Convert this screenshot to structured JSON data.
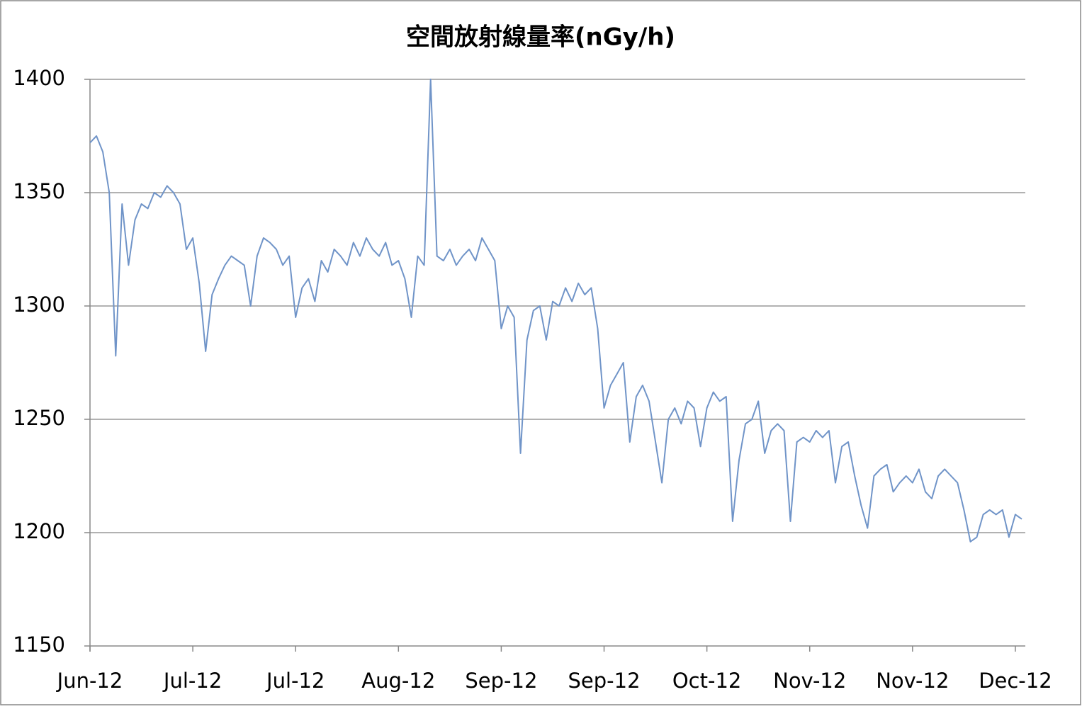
{
  "chart_data": {
    "type": "line",
    "title": "空間放射線量率(nGy/h)",
    "categories": [
      "Jun-12",
      null,
      null,
      null,
      null,
      null,
      null,
      null,
      null,
      null,
      null,
      null,
      null,
      null,
      null,
      null,
      "Jul-12",
      null,
      null,
      null,
      null,
      null,
      null,
      null,
      null,
      null,
      null,
      null,
      null,
      null,
      null,
      null,
      "Jul-12",
      null,
      null,
      null,
      null,
      null,
      null,
      null,
      null,
      null,
      null,
      null,
      null,
      null,
      null,
      null,
      "Aug-12",
      null,
      null,
      null,
      null,
      null,
      null,
      null,
      null,
      null,
      null,
      null,
      null,
      null,
      null,
      null,
      "Sep-12",
      null,
      null,
      null,
      null,
      null,
      null,
      null,
      null,
      null,
      null,
      null,
      null,
      null,
      null,
      null,
      "Sep-12",
      null,
      null,
      null,
      null,
      null,
      null,
      null,
      null,
      null,
      null,
      null,
      null,
      null,
      null,
      null,
      "Oct-12",
      null,
      null,
      null,
      null,
      null,
      null,
      null,
      null,
      null,
      null,
      null,
      null,
      null,
      null,
      null,
      "Nov-12",
      null,
      null,
      null,
      null,
      null,
      null,
      null,
      null,
      null,
      null,
      null,
      null,
      null,
      null,
      null,
      "Nov-12",
      null,
      null,
      null,
      null,
      null,
      null,
      null,
      null,
      null,
      null,
      null,
      null,
      null,
      null,
      null,
      "Dec-12",
      null
    ],
    "values": [
      1372,
      1375,
      1368,
      1350,
      1278,
      1345,
      1318,
      1338,
      1345,
      1343,
      1350,
      1348,
      1353,
      1350,
      1345,
      1325,
      1330,
      1310,
      1280,
      1305,
      1312,
      1318,
      1322,
      1320,
      1318,
      1300,
      1322,
      1330,
      1328,
      1325,
      1318,
      1322,
      1295,
      1308,
      1312,
      1302,
      1320,
      1315,
      1325,
      1322,
      1318,
      1328,
      1322,
      1330,
      1325,
      1322,
      1328,
      1318,
      1320,
      1312,
      1295,
      1322,
      1318,
      1400,
      1322,
      1320,
      1325,
      1318,
      1322,
      1325,
      1320,
      1330,
      1325,
      1320,
      1290,
      1300,
      1295,
      1235,
      1285,
      1298,
      1300,
      1285,
      1302,
      1300,
      1308,
      1302,
      1310,
      1305,
      1308,
      1290,
      1255,
      1265,
      1270,
      1275,
      1240,
      1260,
      1265,
      1258,
      1240,
      1222,
      1250,
      1255,
      1248,
      1258,
      1255,
      1238,
      1255,
      1262,
      1258,
      1260,
      1205,
      1232,
      1248,
      1250,
      1258,
      1235,
      1245,
      1248,
      1245,
      1205,
      1240,
      1242,
      1240,
      1245,
      1242,
      1245,
      1222,
      1238,
      1240,
      1225,
      1212,
      1202,
      1225,
      1228,
      1230,
      1218,
      1222,
      1225,
      1222,
      1228,
      1218,
      1215,
      1225,
      1228,
      1225,
      1222,
      1210,
      1196,
      1198,
      1208,
      1210,
      1208,
      1210,
      1198,
      1208,
      1206
    ],
    "color": "#7094c8",
    "ylim": [
      1150,
      1400
    ],
    "yticks": [
      1150,
      1200,
      1250,
      1300,
      1350,
      1400
    ],
    "grid": true
  }
}
